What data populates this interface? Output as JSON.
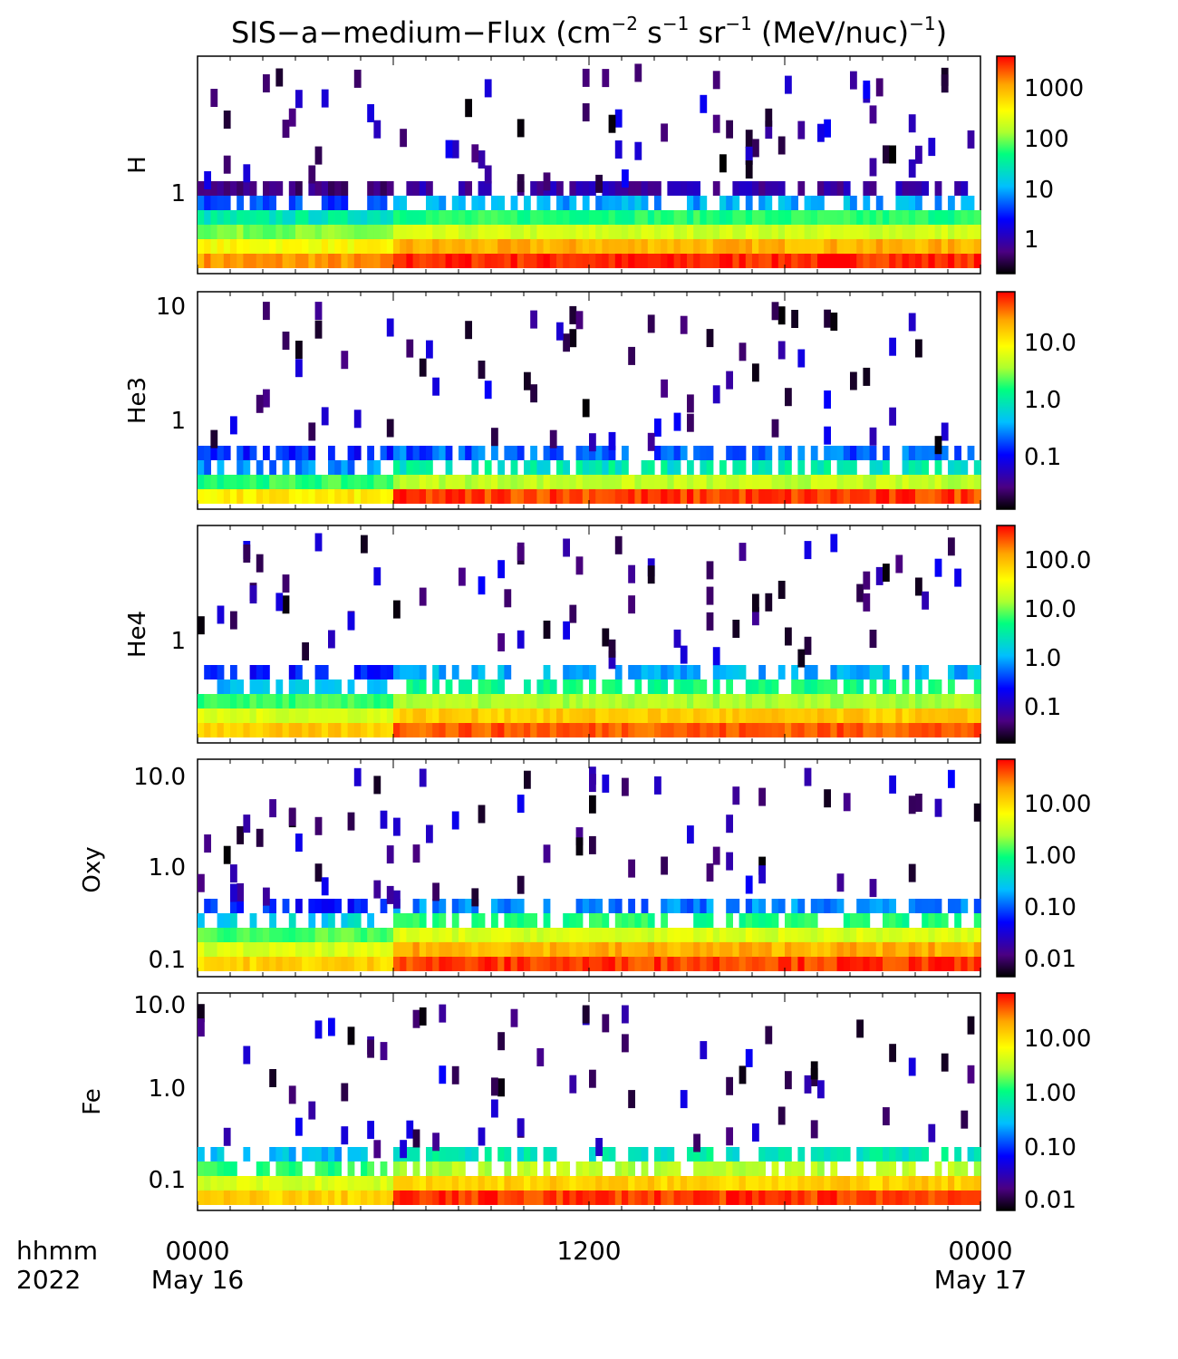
{
  "title": {
    "main": "SIS−a−medium−Flux (cm",
    "exp1": "−2",
    "s": " s",
    "exp2": "−1",
    "sr": " sr",
    "exp3": "−1",
    "mev": " (MeV/nuc)",
    "exp4": "−1",
    "close": ")"
  },
  "time_axis": {
    "label_line1": "hhmm",
    "label_line2": "2022",
    "ticks": [
      {
        "hhmm": "0000",
        "date": "May 16"
      },
      {
        "hhmm": "1200",
        "date": ""
      },
      {
        "hhmm": "0000",
        "date": "May 17"
      }
    ],
    "range_hours": [
      0,
      24
    ]
  },
  "colors": {
    "colormap": [
      "#000000",
      "#4b0082",
      "#0000ff",
      "#00bfff",
      "#00ff7f",
      "#adff2f",
      "#ffff00",
      "#ffa500",
      "#ff0000"
    ]
  },
  "chart_data": [
    {
      "type": "heatmap",
      "ylabel": "H",
      "y_scale": "log",
      "y_ticklabels": [
        "1"
      ],
      "colorbar_scale": "log",
      "colorbar_ticklabels": [
        "1000",
        "100",
        "10",
        "1"
      ],
      "rows": [
        {
          "name": "ch1",
          "before_0600": 1200,
          "after_0600": 3000
        },
        {
          "name": "ch2",
          "before_0600": 300,
          "after_0600": 900
        },
        {
          "name": "ch3",
          "before_0600": 60,
          "after_0600": 150
        },
        {
          "name": "ch4",
          "before_0600": 15,
          "after_0600": 30
        },
        {
          "name": "ch5",
          "before_0600": 3,
          "after_0600": 6
        },
        {
          "name": "ch6",
          "before_0600": 0.5,
          "after_0600": 0.8
        }
      ]
    },
    {
      "type": "heatmap",
      "ylabel": "He3",
      "y_scale": "log",
      "y_ticklabels": [
        "10",
        "1"
      ],
      "colorbar_scale": "log",
      "colorbar_ticklabels": [
        "10.0",
        "1.0",
        "0.1"
      ],
      "rows": [
        {
          "name": "ch1",
          "before_0600": 8,
          "after_0600": 40
        },
        {
          "name": "ch2",
          "before_0600": 1,
          "after_0600": 3
        },
        {
          "name": "ch3",
          "before_0600": 0.2,
          "after_0600": 0.5
        },
        {
          "name": "ch4",
          "before_0600": 0.1,
          "after_0600": 0.15
        }
      ]
    },
    {
      "type": "heatmap",
      "ylabel": "He4",
      "y_scale": "log",
      "y_ticklabels": [
        "1"
      ],
      "colorbar_scale": "log",
      "colorbar_ticklabels": [
        "100.0",
        "10.0",
        "1.0",
        "0.1"
      ],
      "rows": [
        {
          "name": "ch1",
          "before_0600": 60,
          "after_0600": 200
        },
        {
          "name": "ch2",
          "before_0600": 15,
          "after_0600": 60
        },
        {
          "name": "ch3",
          "before_0600": 3,
          "after_0600": 8
        },
        {
          "name": "ch4",
          "before_0600": 0.6,
          "after_0600": 2
        },
        {
          "name": "ch5",
          "before_0600": 0.15,
          "after_0600": 0.5
        }
      ]
    },
    {
      "type": "heatmap",
      "ylabel": "Oxy",
      "y_scale": "log",
      "y_ticklabels": [
        "10.0",
        "1.0",
        "0.1"
      ],
      "colorbar_scale": "log",
      "colorbar_ticklabels": [
        "10.00",
        "1.00",
        "0.10",
        "0.01"
      ],
      "rows": [
        {
          "name": "ch1",
          "before_0600": 10,
          "after_0600": 40
        },
        {
          "name": "ch2",
          "before_0600": 3,
          "after_0600": 15
        },
        {
          "name": "ch3",
          "before_0600": 0.8,
          "after_0600": 3
        },
        {
          "name": "ch4",
          "before_0600": 0.2,
          "after_0600": 0.6
        },
        {
          "name": "ch5",
          "before_0600": 0.05,
          "after_0600": 0.1
        }
      ]
    },
    {
      "type": "heatmap",
      "ylabel": "Fe",
      "y_scale": "log",
      "y_ticklabels": [
        "10.0",
        "1.0",
        "0.1"
      ],
      "colorbar_scale": "log",
      "colorbar_ticklabels": [
        "10.00",
        "1.00",
        "0.10",
        "0.01"
      ],
      "rows": [
        {
          "name": "ch1",
          "before_0600": 10,
          "after_0600": 40
        },
        {
          "name": "ch2",
          "before_0600": 3,
          "after_0600": 10
        },
        {
          "name": "ch3",
          "before_0600": 0.6,
          "after_0600": 2
        },
        {
          "name": "ch4",
          "before_0600": 0.15,
          "after_0600": 0.3
        }
      ]
    }
  ]
}
